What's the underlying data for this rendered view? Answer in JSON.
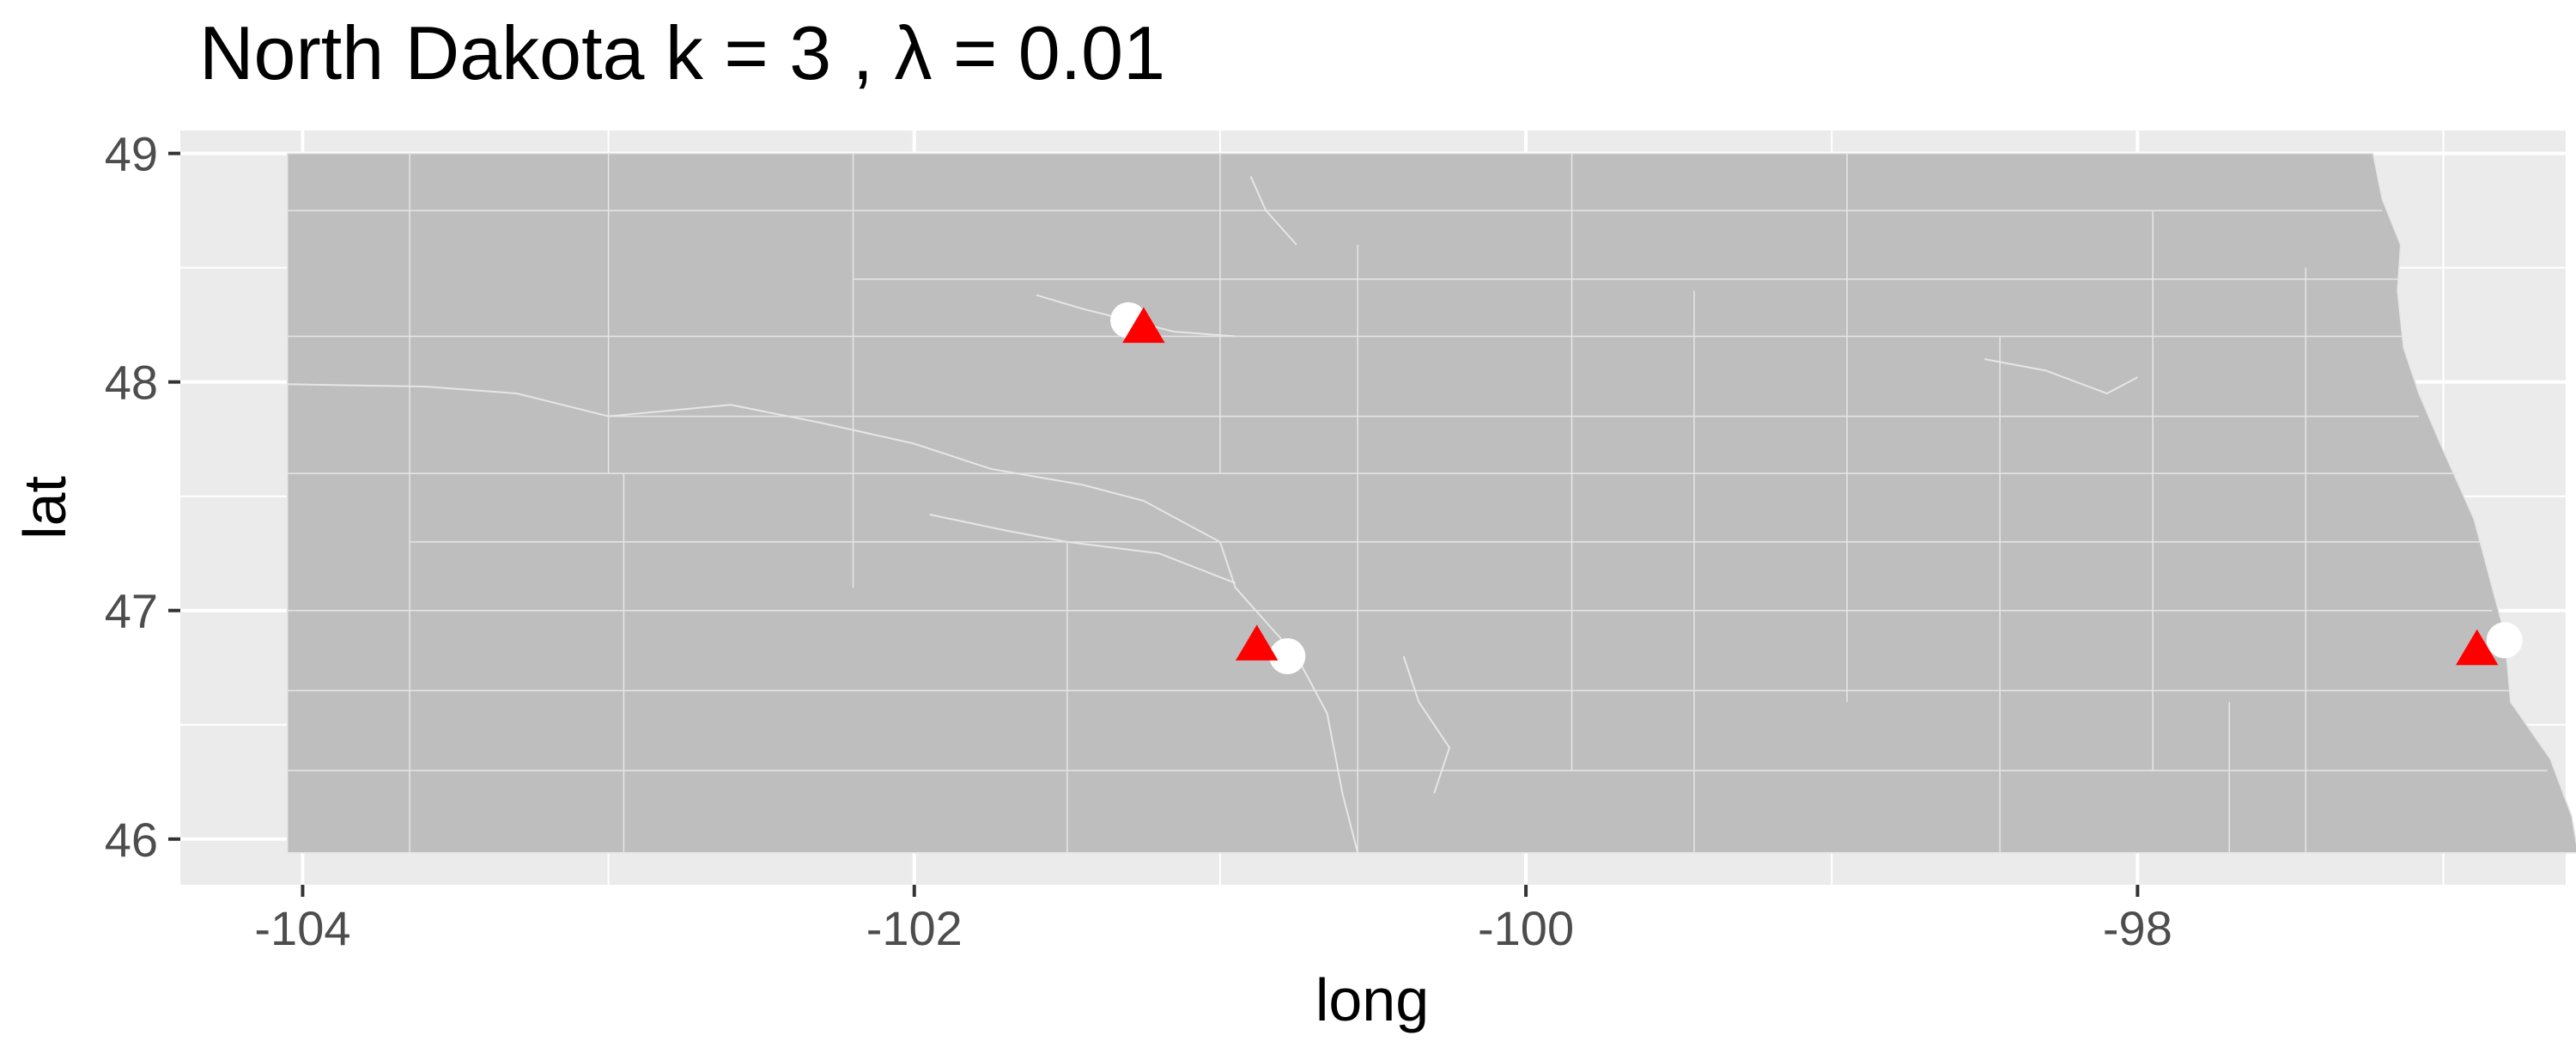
{
  "chart_data": {
    "type": "map",
    "title": "North Dakota  k =  3 ,  λ  =  0.01",
    "xlabel": "long",
    "ylabel": "lat",
    "xlim": [
      -104.4,
      -96.6
    ],
    "ylim": [
      45.8,
      49.1
    ],
    "x_ticks": [
      {
        "value": -104,
        "label": "-104"
      },
      {
        "value": -102,
        "label": "-102"
      },
      {
        "value": -100,
        "label": "-100"
      },
      {
        "value": -98,
        "label": "-98"
      }
    ],
    "y_ticks": [
      {
        "value": 46,
        "label": "46"
      },
      {
        "value": 47,
        "label": "47"
      },
      {
        "value": 48,
        "label": "48"
      },
      {
        "value": 49,
        "label": "49"
      }
    ],
    "grid": true,
    "colors": {
      "panel_background": "#ebebeb",
      "grid_line": "#ffffff",
      "land_fill": "#bebebe",
      "county_border": "#e6e6e6",
      "triangle_marker": "#ff0000",
      "circle_marker": "#ffffff"
    },
    "state_outline": [
      [
        -104.05,
        49.0
      ],
      [
        -97.23,
        49.0
      ],
      [
        -97.2,
        48.8
      ],
      [
        -97.14,
        48.6
      ],
      [
        -97.15,
        48.4
      ],
      [
        -97.13,
        48.15
      ],
      [
        -97.08,
        47.95
      ],
      [
        -97.0,
        47.7
      ],
      [
        -96.9,
        47.4
      ],
      [
        -96.84,
        47.1
      ],
      [
        -96.8,
        46.9
      ],
      [
        -96.78,
        46.6
      ],
      [
        -96.65,
        46.35
      ],
      [
        -96.58,
        46.1
      ],
      [
        -96.56,
        45.94
      ],
      [
        -104.05,
        45.94
      ]
    ],
    "vertical_borders": [
      {
        "x": -103.65,
        "y": [
          45.94,
          49.0
        ]
      },
      {
        "x": -102.95,
        "y": [
          45.94,
          47.6
        ]
      },
      {
        "x": -102.2,
        "y": [
          47.1,
          49.0
        ]
      },
      {
        "x": -101.5,
        "y": [
          45.94,
          47.3
        ]
      },
      {
        "x": -101.0,
        "y": [
          47.6,
          49.0
        ]
      },
      {
        "x": -100.55,
        "y": [
          45.94,
          48.6
        ]
      },
      {
        "x": -99.85,
        "y": [
          46.3,
          49.0
        ]
      },
      {
        "x": -99.45,
        "y": [
          45.94,
          48.4
        ]
      },
      {
        "x": -98.95,
        "y": [
          46.6,
          49.0
        ]
      },
      {
        "x": -98.45,
        "y": [
          45.94,
          48.2
        ]
      },
      {
        "x": -97.95,
        "y": [
          46.3,
          48.75
        ]
      },
      {
        "x": -97.45,
        "y": [
          45.94,
          48.5
        ]
      },
      {
        "x": -97.7,
        "y": [
          45.94,
          46.6
        ]
      },
      {
        "x": -103.0,
        "y": [
          47.6,
          49.0
        ]
      }
    ],
    "horizontal_borders": [
      {
        "y": 48.75,
        "x": [
          -104.05,
          -97.2
        ]
      },
      {
        "y": 48.45,
        "x": [
          -102.2,
          -97.14
        ]
      },
      {
        "y": 48.2,
        "x": [
          -104.05,
          -97.13
        ]
      },
      {
        "y": 47.85,
        "x": [
          -103.0,
          -97.08
        ]
      },
      {
        "y": 47.6,
        "x": [
          -104.05,
          -96.95
        ]
      },
      {
        "y": 47.3,
        "x": [
          -103.65,
          -96.88
        ]
      },
      {
        "y": 47.0,
        "x": [
          -104.05,
          -96.84
        ]
      },
      {
        "y": 46.65,
        "x": [
          -104.05,
          -96.78
        ]
      },
      {
        "y": 46.3,
        "x": [
          -104.05,
          -96.66
        ]
      }
    ],
    "rivers": [
      [
        [
          -104.05,
          47.99
        ],
        [
          -103.6,
          47.98
        ],
        [
          -103.3,
          47.95
        ],
        [
          -103.0,
          47.85
        ],
        [
          -102.6,
          47.9
        ],
        [
          -102.3,
          47.82
        ],
        [
          -102.0,
          47.73
        ],
        [
          -101.75,
          47.62
        ],
        [
          -101.45,
          47.55
        ],
        [
          -101.25,
          47.48
        ],
        [
          -101.0,
          47.3
        ],
        [
          -100.95,
          47.1
        ],
        [
          -100.85,
          46.95
        ],
        [
          -100.75,
          46.8
        ],
        [
          -100.65,
          46.55
        ],
        [
          -100.6,
          46.2
        ],
        [
          -100.55,
          45.94
        ]
      ],
      [
        [
          -101.95,
          47.42
        ],
        [
          -101.7,
          47.35
        ],
        [
          -101.5,
          47.3
        ],
        [
          -101.2,
          47.25
        ],
        [
          -100.95,
          47.12
        ]
      ],
      [
        [
          -101.6,
          48.38
        ],
        [
          -101.45,
          48.32
        ],
        [
          -101.3,
          48.27
        ],
        [
          -101.15,
          48.22
        ],
        [
          -100.95,
          48.2
        ]
      ],
      [
        [
          -98.5,
          48.1
        ],
        [
          -98.3,
          48.05
        ],
        [
          -98.1,
          47.95
        ],
        [
          -98.0,
          48.02
        ]
      ],
      [
        [
          -100.9,
          48.9
        ],
        [
          -100.85,
          48.75
        ],
        [
          -100.75,
          48.6
        ]
      ],
      [
        [
          -100.4,
          46.8
        ],
        [
          -100.35,
          46.6
        ],
        [
          -100.25,
          46.4
        ],
        [
          -100.3,
          46.2
        ]
      ]
    ],
    "series": [
      {
        "marker": "circle",
        "points": [
          {
            "x": -101.3,
            "y": 48.27
          },
          {
            "x": -100.78,
            "y": 46.8
          },
          {
            "x": -96.8,
            "y": 46.87
          }
        ]
      },
      {
        "marker": "triangle",
        "points": [
          {
            "x": -101.25,
            "y": 48.23
          },
          {
            "x": -100.88,
            "y": 46.84
          },
          {
            "x": -96.89,
            "y": 46.82
          }
        ]
      }
    ]
  }
}
